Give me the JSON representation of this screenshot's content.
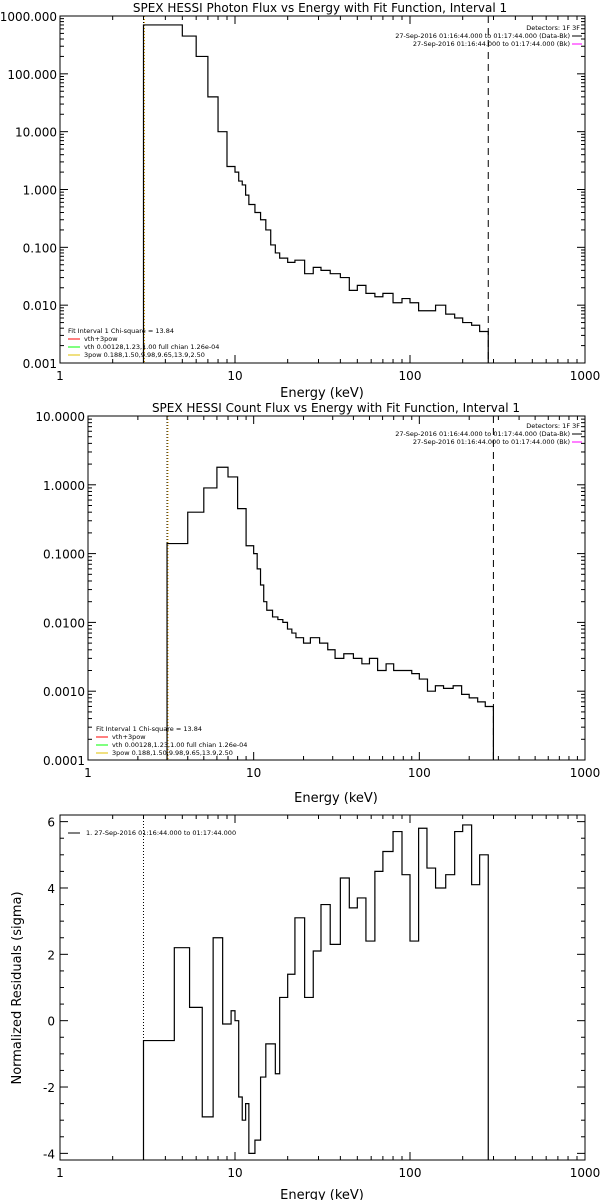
{
  "chart_data": [
    {
      "type": "line",
      "title": "SPEX HESSI Photon Flux vs Energy with Fit Function, Interval 1",
      "xlabel": "Energy (keV)",
      "ylabel": "",
      "xscale": "log",
      "yscale": "log",
      "xlim": [
        1,
        1000
      ],
      "ylim": [
        0.001,
        1000
      ],
      "xticks": [
        "1",
        "10",
        "100",
        "1000"
      ],
      "yticks": [
        "1000.000",
        "100.000",
        "10.000",
        "1.000",
        "0.100",
        "0.010",
        "0.001"
      ],
      "info_lines": [
        "Detectors: 1F 3F",
        "27-Sep-2016 01:16:44.000 to 01:17:44.000 (Data-Bk)",
        "27-Sep-2016 01:16:44.000 to 01:17:44.000 (Bk)"
      ],
      "legend_lines": [
        "Fit Interval 1    Chi-square = 13.84",
        "vth+3pow",
        "vth 0.00128,1.23,1.00  full chian 1.26e-04",
        "3pow 0.188,1.50,9.98,9.65,13.9,2.50"
      ],
      "x_edges": [
        3.0,
        3.5,
        4.0,
        4.5,
        5.0,
        5.5,
        6.0,
        6.5,
        7.0,
        7.5,
        8.0,
        8.5,
        9.0,
        9.5,
        10.0,
        10.5,
        11.0,
        11.5,
        12.0,
        13.0,
        14.0,
        15.0,
        16.0,
        17.0,
        18.0,
        20.0,
        22.0,
        25.0,
        28.0,
        31.0,
        35.0,
        40.0,
        45.0,
        50.0,
        56.0,
        63.0,
        70.0,
        80.0,
        90.0,
        100.0,
        112.0,
        125.0,
        140.0,
        160.0,
        180.0,
        200.0,
        225.0,
        250.0,
        280.0
      ],
      "series": [
        {
          "name": "Data-Bk",
          "color": "#000000",
          "values": [
            700,
            700,
            700,
            700,
            450,
            450,
            200,
            200,
            40,
            40,
            10,
            10,
            2.5,
            2.5,
            2.0,
            1.4,
            1.2,
            0.8,
            0.55,
            0.4,
            0.3,
            0.2,
            0.11,
            0.08,
            0.065,
            0.055,
            0.06,
            0.035,
            0.045,
            0.04,
            0.035,
            0.03,
            0.018,
            0.022,
            0.016,
            0.014,
            0.016,
            0.011,
            0.013,
            0.011,
            0.008,
            0.008,
            0.01,
            0.007,
            0.006,
            0.005,
            0.0045,
            0.0035
          ]
        },
        {
          "name": "vth+3pow",
          "color": "#ff0000",
          "values": []
        },
        {
          "name": "vth",
          "color": "#00ff00",
          "values": []
        },
        {
          "name": "3pow",
          "color": "#e0c000",
          "values": []
        },
        {
          "name": "Bk",
          "color": "#ff00ff",
          "values": []
        }
      ]
    },
    {
      "type": "line",
      "title": "SPEX HESSI Count Flux vs Energy with Fit Function, Interval 1",
      "xlabel": "Energy (keV)",
      "ylabel": "",
      "xscale": "log",
      "yscale": "log",
      "xlim": [
        1,
        1000
      ],
      "ylim": [
        0.0001,
        10
      ],
      "xticks": [
        "1",
        "10",
        "100",
        "1000"
      ],
      "yticks": [
        "10.0000",
        "1.0000",
        "0.1000",
        "0.0100",
        "0.0010",
        "0.0001"
      ],
      "info_lines": [
        "Detectors: 1F 3F",
        "27-Sep-2016 01:16:44.000 to 01:17:44.000 (Data-Bk)",
        "27-Sep-2016 01:16:44.000 to 01:17:44.000 (Bk)"
      ],
      "legend_lines": [
        "Fit Interval 1    Chi-square = 13.84",
        "vth+3pow",
        "vth 0.00128,1.23,1.00  full chian 1.26e-04",
        "3pow 0.188,1.50,9.98,9.65,13.9,2.50"
      ],
      "x_edges": [
        3.0,
        3.5,
        4.0,
        4.5,
        5.0,
        5.5,
        6.0,
        6.5,
        7.0,
        7.5,
        8.0,
        8.5,
        9.0,
        9.5,
        10.0,
        10.5,
        11.0,
        11.5,
        12.0,
        13.0,
        14.0,
        15.0,
        16.0,
        17.0,
        18.0,
        20.0,
        22.0,
        25.0,
        28.0,
        31.0,
        35.0,
        40.0,
        45.0,
        50.0,
        56.0,
        63.0,
        70.0,
        80.0,
        90.0,
        100.0,
        112.0,
        125.0,
        140.0,
        160.0,
        180.0,
        200.0,
        225.0,
        250.0,
        280.0
      ],
      "series": [
        {
          "name": "Data-Bk",
          "color": "#000000",
          "values": [
            0.14,
            0.14,
            0.4,
            0.4,
            0.9,
            0.9,
            1.8,
            1.8,
            1.3,
            1.3,
            0.45,
            0.45,
            0.13,
            0.13,
            0.1,
            0.06,
            0.035,
            0.02,
            0.015,
            0.012,
            0.011,
            0.01,
            0.008,
            0.007,
            0.006,
            0.005,
            0.006,
            0.005,
            0.004,
            0.003,
            0.0035,
            0.003,
            0.0025,
            0.003,
            0.002,
            0.0025,
            0.002,
            0.002,
            0.0018,
            0.0015,
            0.001,
            0.0012,
            0.0011,
            0.0012,
            0.0009,
            0.0008,
            0.0007,
            0.0006
          ]
        },
        {
          "name": "vth+3pow",
          "color": "#ff0000",
          "values": []
        },
        {
          "name": "vth",
          "color": "#00ff00",
          "values": []
        },
        {
          "name": "3pow",
          "color": "#e0c000",
          "values": []
        },
        {
          "name": "Bk",
          "color": "#ff00ff",
          "values": []
        }
      ]
    },
    {
      "type": "line",
      "title": "",
      "xlabel": "Energy (keV)",
      "ylabel": "Normalized Residuals (sigma)",
      "xscale": "log",
      "yscale": "linear",
      "xlim": [
        1,
        1000
      ],
      "ylim": [
        -4.2,
        6.2
      ],
      "xticks": [
        "1",
        "10",
        "100",
        "1000"
      ],
      "yticks": [
        "6",
        "4",
        "2",
        "0",
        "-2",
        "-4"
      ],
      "legend_lines": [
        "1. 27-Sep-2016 01:16:44.000 to 01:17:44.000"
      ],
      "x_edges": [
        3.0,
        3.5,
        4.0,
        4.5,
        5.0,
        5.5,
        6.0,
        6.5,
        7.0,
        7.5,
        8.0,
        8.5,
        9.0,
        9.5,
        10.0,
        10.5,
        11.0,
        11.5,
        12.0,
        13.0,
        14.0,
        15.0,
        16.0,
        17.0,
        18.0,
        20.0,
        22.0,
        25.0,
        28.0,
        31.0,
        35.0,
        40.0,
        45.0,
        50.0,
        56.0,
        63.0,
        70.0,
        80.0,
        90.0,
        100.0,
        112.0,
        125.0,
        140.0,
        160.0,
        180.0,
        200.0,
        225.0,
        250.0,
        280.0
      ],
      "series": [
        {
          "name": "",
          "color": "#000000",
          "values": [
            -0.6,
            -0.6,
            -0.6,
            2.2,
            2.2,
            0.4,
            0.4,
            -2.9,
            -2.9,
            2.5,
            2.5,
            -0.1,
            -0.1,
            0.3,
            0.0,
            -2.3,
            -3.0,
            -2.5,
            -4.0,
            -3.6,
            -1.7,
            -0.7,
            -0.7,
            -1.6,
            0.7,
            1.4,
            3.1,
            0.7,
            2.1,
            3.5,
            2.3,
            4.3,
            3.4,
            3.7,
            2.4,
            4.5,
            5.1,
            5.7,
            4.4,
            2.4,
            5.8,
            4.6,
            4.0,
            4.4,
            5.7,
            5.9,
            4.1,
            5.0
          ]
        }
      ]
    }
  ]
}
